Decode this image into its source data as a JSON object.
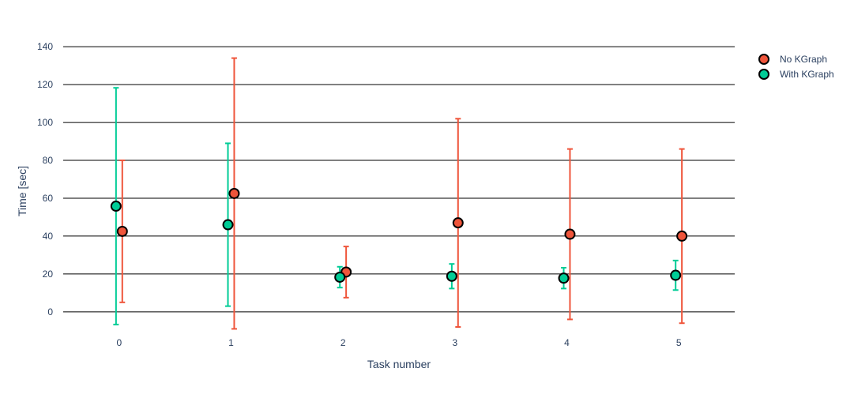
{
  "chart_data": {
    "type": "scatter",
    "title": "",
    "xlabel": "Task number",
    "ylabel": "Time [sec]",
    "x": [
      0,
      1,
      2,
      3,
      4,
      5
    ],
    "xlim": [
      -0.5,
      5.5
    ],
    "ylim": [
      -13,
      148
    ],
    "yticks": [
      0,
      20,
      40,
      60,
      80,
      100,
      120,
      140
    ],
    "grid": true,
    "legend_position": "top-right",
    "series": [
      {
        "name": "No KGraph",
        "color": "#ef553b",
        "values": [
          42.5,
          62.5,
          21.0,
          47.0,
          41.0,
          40.0
        ],
        "error": [
          37.5,
          71.5,
          13.5,
          55.0,
          45.0,
          46.0
        ]
      },
      {
        "name": "With KGraph",
        "color": "#00cc96",
        "values": [
          55.8,
          46.0,
          18.3,
          18.8,
          17.8,
          19.3
        ],
        "error": [
          62.5,
          43.0,
          5.5,
          6.5,
          5.5,
          7.8
        ]
      }
    ]
  }
}
